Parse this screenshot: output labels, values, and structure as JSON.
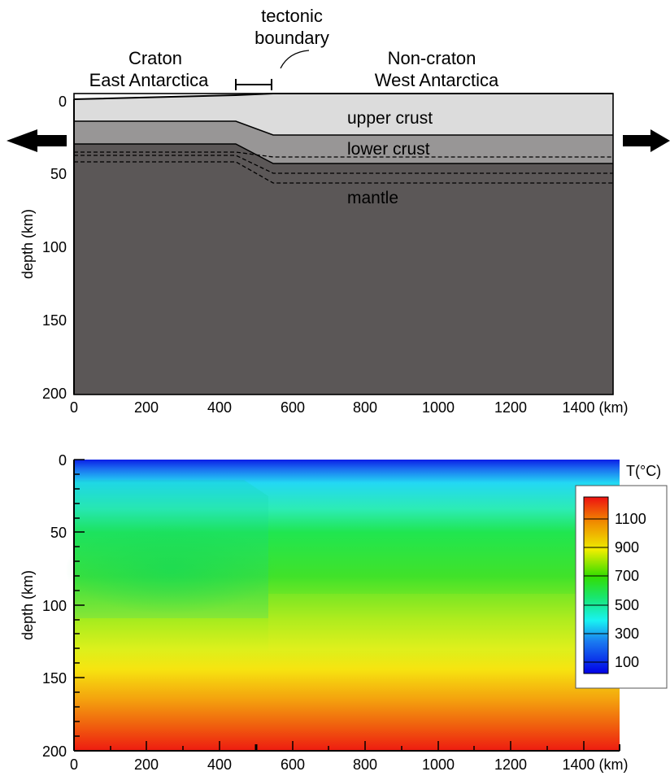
{
  "top_panel": {
    "annotation_tectonic": [
      "tectonic",
      "boundary"
    ],
    "region_left": [
      "Craton",
      "East Antarctica"
    ],
    "region_right": [
      "Non-craton",
      "West Antarctica"
    ],
    "layer_labels": {
      "upper": "upper crust",
      "lower": "lower crust",
      "mantle": "mantle"
    },
    "ylabel": "depth (km)",
    "yticks": [
      "0",
      "50",
      "100",
      "150",
      "200"
    ],
    "xticks": [
      "0",
      "200",
      "400",
      "600",
      "800",
      "1000",
      "1200",
      "1400 (km)"
    ],
    "colors": {
      "upper_crust": "#dcdcdc",
      "lower_crust": "#989696",
      "mantle": "#5b5757"
    }
  },
  "bottom_panel": {
    "ylabel": "depth (km)",
    "yticks": [
      "0",
      "50",
      "100",
      "150",
      "200"
    ],
    "xticks": [
      "0",
      "200",
      "400",
      "600",
      "800",
      "1000",
      "1200",
      "1400 (km)"
    ],
    "colorbar": {
      "title": "T(°C)",
      "labels": [
        "1100",
        "900",
        "700",
        "500",
        "300",
        "100"
      ]
    }
  },
  "chart_data": {
    "type": "heatmap",
    "xlabel": "",
    "ylabel": "depth (km)",
    "xlim": [
      0,
      1400
    ],
    "ylim": [
      200,
      0
    ],
    "colorbar_range": [
      0,
      1300
    ],
    "colorbar_ticks": [
      100,
      300,
      500,
      700,
      900,
      1100
    ],
    "colorscale": [
      {
        "t": 0,
        "color": "#0000e6"
      },
      {
        "t": 300,
        "color": "#19f2f2"
      },
      {
        "t": 500,
        "color": "#19e65a"
      },
      {
        "t": 700,
        "color": "#33dd00"
      },
      {
        "t": 900,
        "color": "#eeee00"
      },
      {
        "t": 1100,
        "color": "#f08a00"
      },
      {
        "t": 1300,
        "color": "#ee1111"
      }
    ]
  }
}
